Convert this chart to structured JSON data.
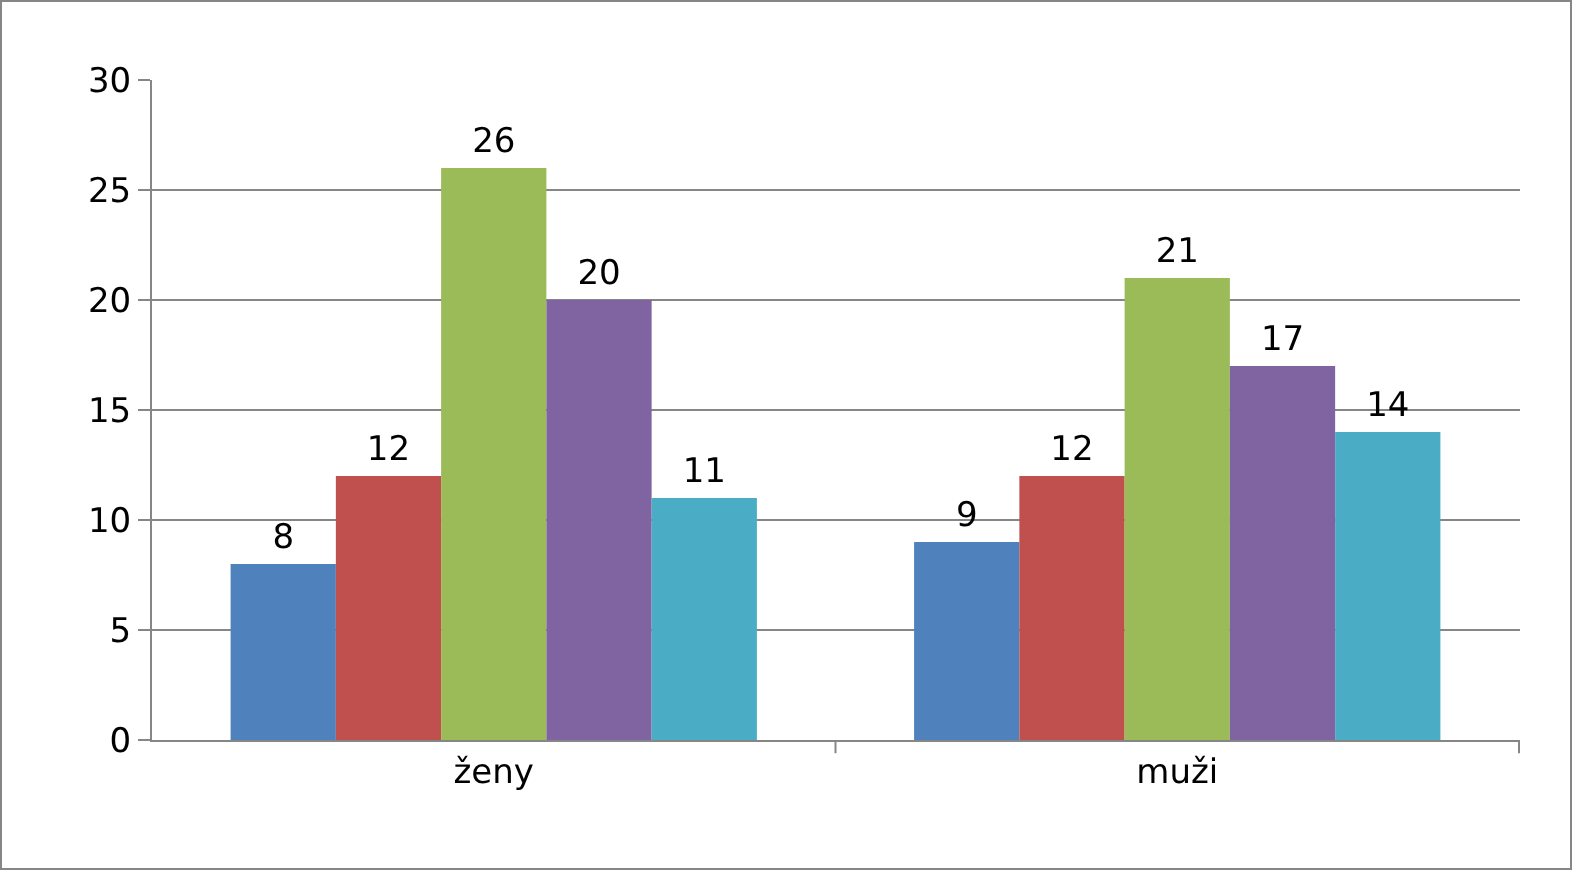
{
  "chart_data": {
    "type": "bar",
    "categories": [
      "ženy",
      "muži"
    ],
    "series": [
      {
        "color": "#4f81bd",
        "values": [
          8,
          9
        ]
      },
      {
        "color": "#c0504d",
        "values": [
          12,
          12
        ]
      },
      {
        "color": "#9bbb59",
        "values": [
          26,
          21
        ]
      },
      {
        "color": "#8064a2",
        "values": [
          20,
          17
        ]
      },
      {
        "color": "#4bacc6",
        "values": [
          11,
          14
        ]
      }
    ],
    "ylim": [
      0,
      30
    ],
    "yticks": [
      0,
      5,
      10,
      15,
      20,
      25,
      30
    ],
    "grid": "y",
    "data_labels": true
  }
}
